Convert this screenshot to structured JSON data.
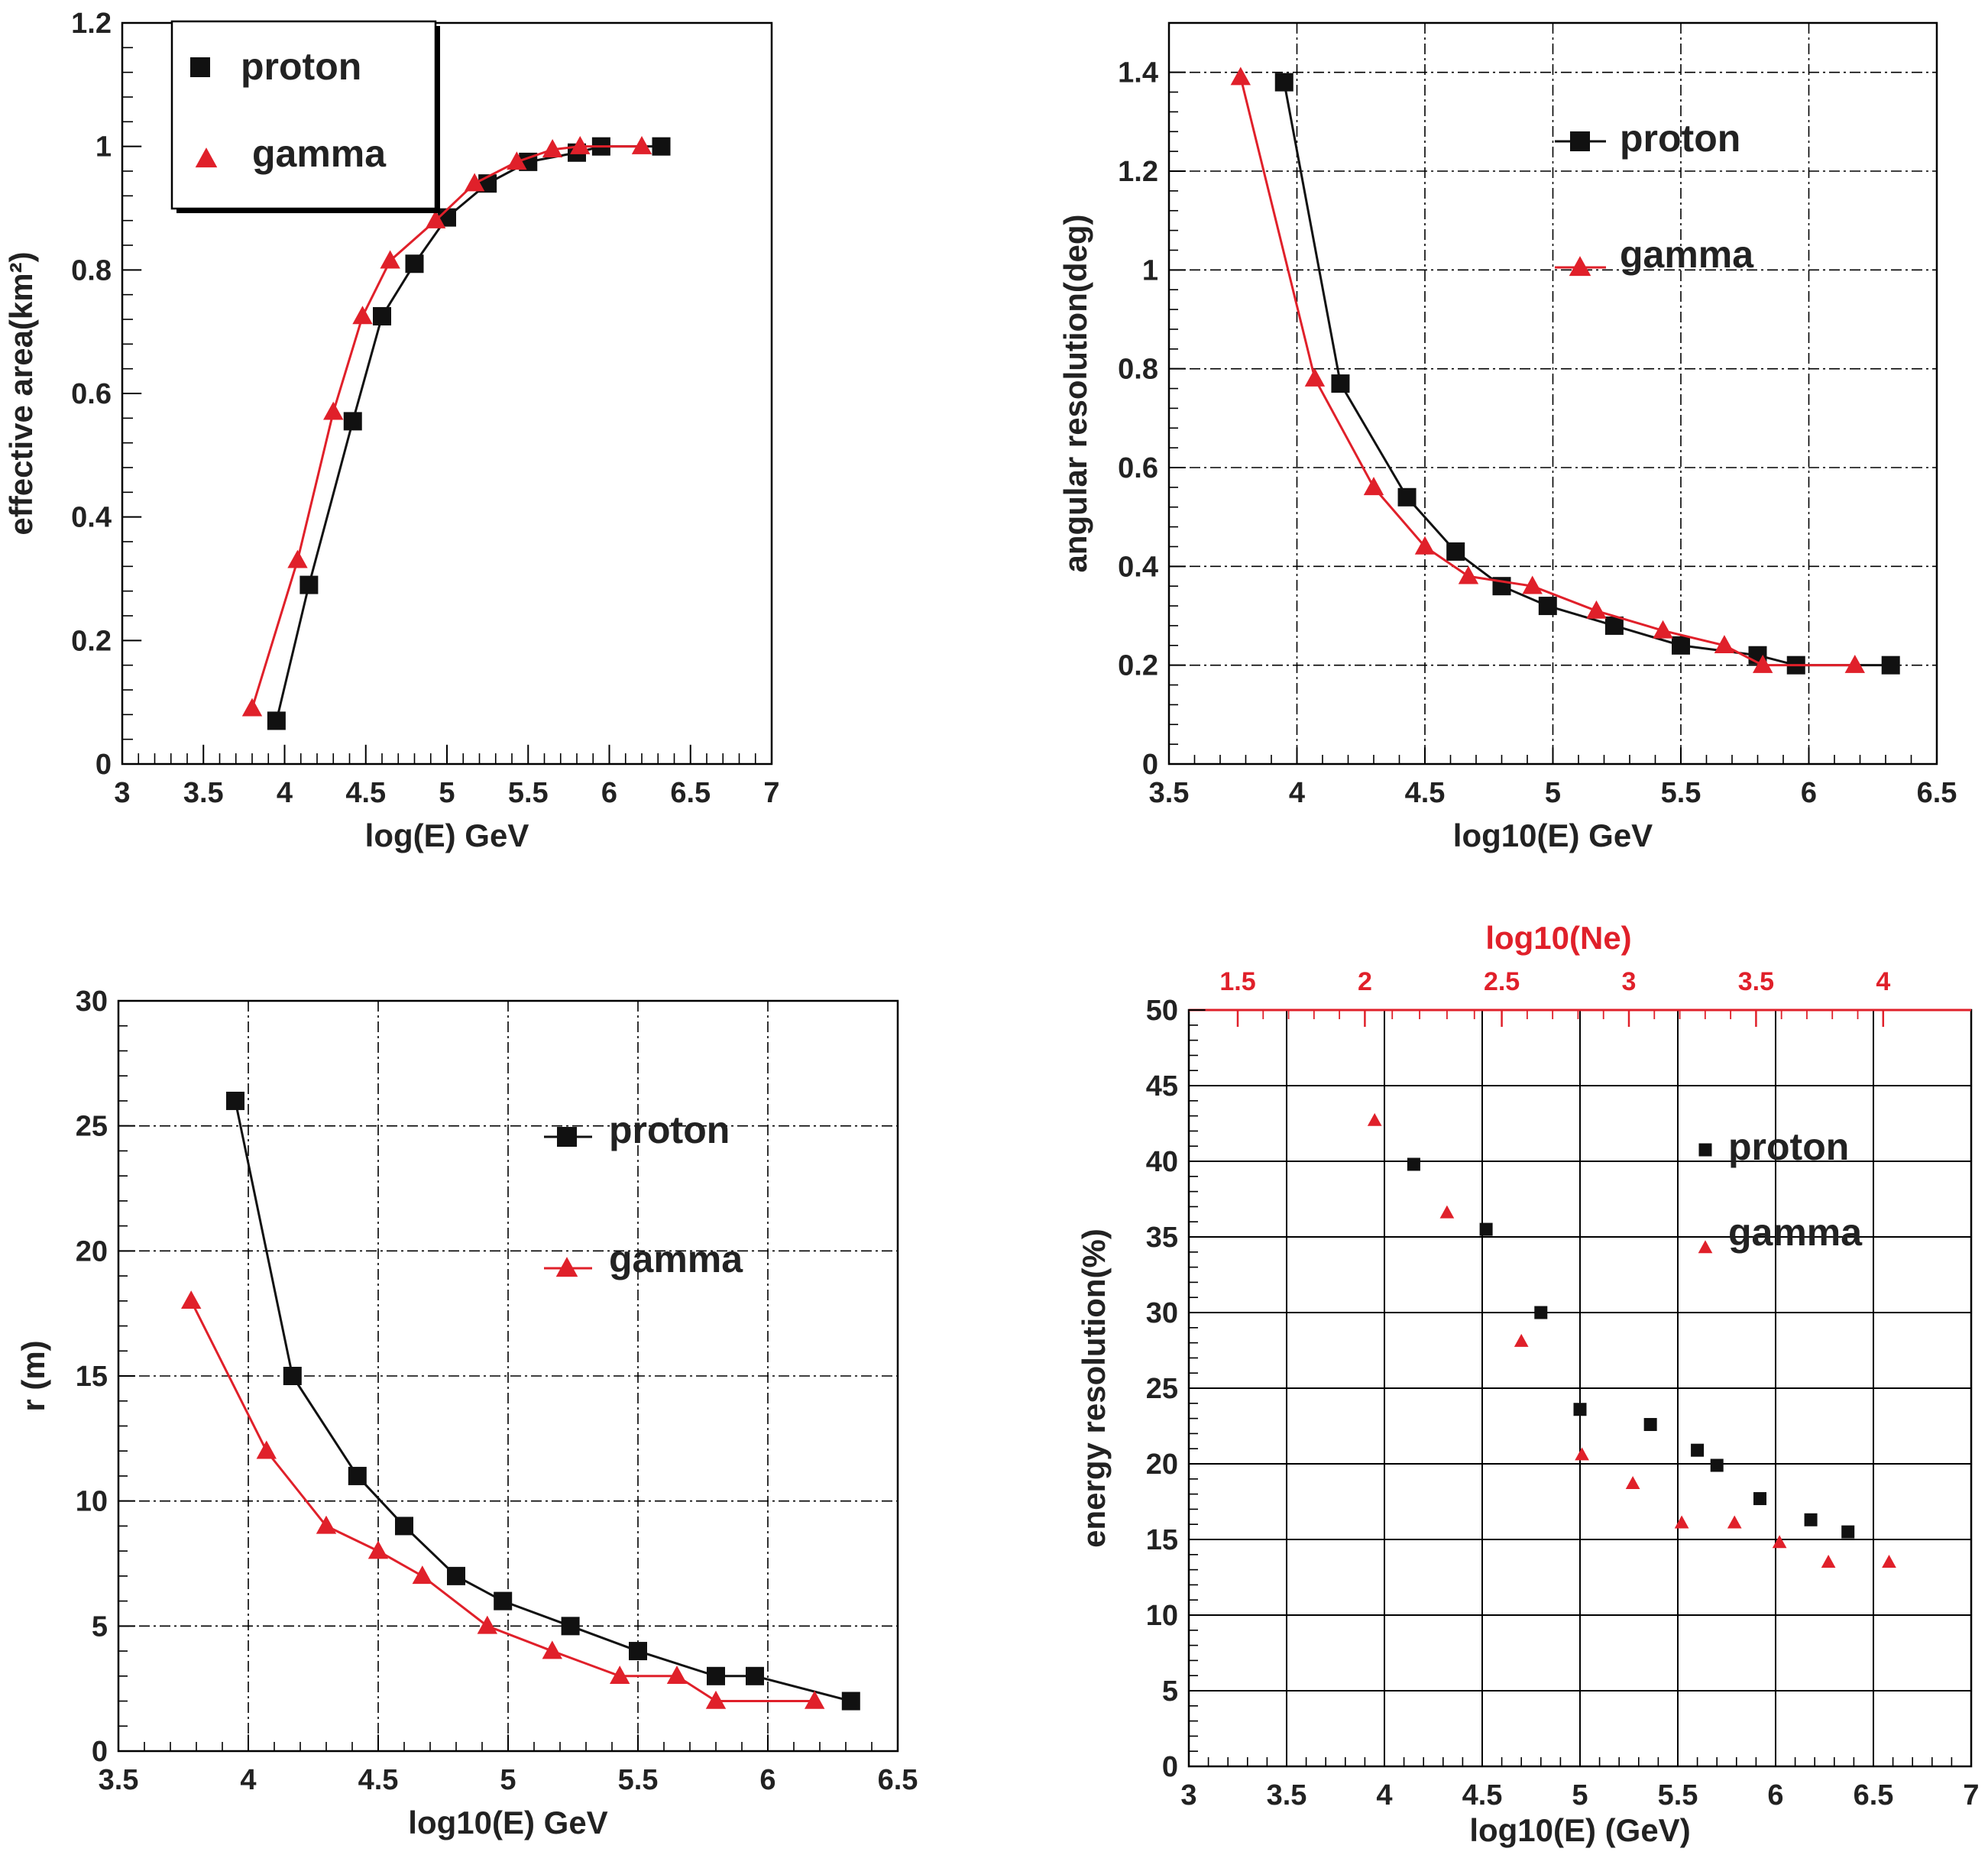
{
  "colors": {
    "proton": "#111111",
    "gamma": "#e0202a",
    "top_axis": "#e0202a"
  },
  "chart_data": [
    {
      "type": "line",
      "xlabel": "log(E) GeV",
      "ylabel": "effective area(km²)",
      "xlim": [
        3,
        7
      ],
      "ylim": [
        0,
        1.2
      ],
      "xticks": [
        "3",
        "3.5",
        "4",
        "4.5",
        "5",
        "5.5",
        "6",
        "6.5",
        "7"
      ],
      "yticks": [
        "0",
        "0.2",
        "0.4",
        "0.6",
        "0.8",
        "1",
        "1.2"
      ],
      "grid": "off",
      "legend": "top-left, boxed",
      "series": [
        {
          "name": "proton",
          "marker": "square",
          "x": [
            3.95,
            4.15,
            4.42,
            4.6,
            4.8,
            5.0,
            5.25,
            5.5,
            5.8,
            5.95,
            6.32
          ],
          "y": [
            0.07,
            0.29,
            0.555,
            0.725,
            0.81,
            0.885,
            0.94,
            0.975,
            0.99,
            1.0,
            1.0
          ]
        },
        {
          "name": "gamma",
          "marker": "triangle",
          "x": [
            3.8,
            4.08,
            4.3,
            4.48,
            4.65,
            4.93,
            5.17,
            5.43,
            5.65,
            5.82,
            6.2
          ],
          "y": [
            0.09,
            0.33,
            0.57,
            0.725,
            0.815,
            0.88,
            0.94,
            0.975,
            0.995,
            1.0,
            1.0
          ]
        }
      ]
    },
    {
      "type": "line",
      "xlabel": "log10(E) GeV",
      "ylabel": "angular resolution(deg)",
      "xlim": [
        3.5,
        6.5
      ],
      "ylim": [
        0,
        1.5
      ],
      "xticks": [
        "3.5",
        "4",
        "4.5",
        "5",
        "5.5",
        "6",
        "6.5"
      ],
      "yticks": [
        "0",
        "0.2",
        "0.4",
        "0.6",
        "0.8",
        "1",
        "1.2",
        "1.4"
      ],
      "grid": "on",
      "legend": "top-right",
      "series": [
        {
          "name": "proton",
          "marker": "square",
          "x": [
            3.95,
            4.17,
            4.43,
            4.62,
            4.8,
            4.98,
            5.24,
            5.5,
            5.8,
            5.95,
            6.32
          ],
          "y": [
            1.38,
            0.77,
            0.54,
            0.43,
            0.36,
            0.32,
            0.28,
            0.24,
            0.22,
            0.2,
            0.2
          ]
        },
        {
          "name": "gamma",
          "marker": "triangle",
          "x": [
            3.78,
            4.07,
            4.3,
            4.5,
            4.67,
            4.92,
            5.17,
            5.43,
            5.67,
            5.82,
            6.18
          ],
          "y": [
            1.39,
            0.78,
            0.56,
            0.44,
            0.38,
            0.36,
            0.31,
            0.27,
            0.24,
            0.2,
            0.2
          ]
        }
      ]
    },
    {
      "type": "line",
      "xlabel": "log10(E) GeV",
      "ylabel": "r (m)",
      "xlim": [
        3.5,
        6.5
      ],
      "ylim": [
        0,
        30
      ],
      "xticks": [
        "3.5",
        "4",
        "4.5",
        "5",
        "5.5",
        "6",
        "6.5"
      ],
      "yticks": [
        "0",
        "5",
        "10",
        "15",
        "20",
        "25",
        "30"
      ],
      "grid": "on",
      "legend": "top-right",
      "series": [
        {
          "name": "proton",
          "marker": "square",
          "x": [
            3.95,
            4.17,
            4.42,
            4.6,
            4.8,
            4.98,
            5.24,
            5.5,
            5.8,
            5.95,
            6.32
          ],
          "y": [
            26,
            15,
            11,
            9,
            7,
            6,
            5,
            4,
            3,
            3,
            2
          ]
        },
        {
          "name": "gamma",
          "marker": "triangle",
          "x": [
            3.78,
            4.07,
            4.3,
            4.5,
            4.67,
            4.92,
            5.17,
            5.43,
            5.65,
            5.8,
            6.18
          ],
          "y": [
            18,
            12,
            9,
            8,
            7,
            5,
            4,
            3,
            3,
            2,
            2
          ]
        }
      ]
    },
    {
      "type": "scatter",
      "xlabel": "log10(E) (GeV)",
      "ylabel": "energy resolution(%)",
      "top_axis_label": "log10(Ne)",
      "top_xticks": [
        {
          "label": "1.5",
          "e": 3.25
        },
        {
          "label": "2",
          "e": 3.9
        },
        {
          "label": "2.5",
          "e": 4.6
        },
        {
          "label": "3",
          "e": 5.25
        },
        {
          "label": "3.5",
          "e": 5.9
        },
        {
          "label": "4",
          "e": 6.55
        }
      ],
      "xlim": [
        3,
        7
      ],
      "ylim": [
        0,
        50
      ],
      "xticks": [
        "3",
        "3.5",
        "4",
        "4.5",
        "5",
        "5.5",
        "6",
        "6.5",
        "7"
      ],
      "yticks": [
        "0",
        "5",
        "10",
        "15",
        "20",
        "25",
        "30",
        "35",
        "40",
        "45",
        "50"
      ],
      "grid": "on",
      "legend": "top-right",
      "series": [
        {
          "name": "proton",
          "marker": "square",
          "x": [
            4.15,
            4.52,
            4.8,
            5.0,
            5.36,
            5.6,
            5.7,
            5.92,
            6.18,
            6.37
          ],
          "y": [
            39.8,
            35.5,
            30.0,
            23.6,
            22.6,
            20.9,
            19.9,
            17.7,
            16.3,
            15.5
          ]
        },
        {
          "name": "gamma",
          "marker": "triangle",
          "x": [
            3.95,
            4.32,
            4.7,
            5.01,
            5.27,
            5.52,
            5.79,
            6.02,
            6.27,
            6.58
          ],
          "y": [
            42.7,
            36.6,
            28.1,
            20.6,
            18.7,
            16.1,
            16.1,
            14.8,
            13.5,
            13.5
          ]
        }
      ]
    }
  ]
}
